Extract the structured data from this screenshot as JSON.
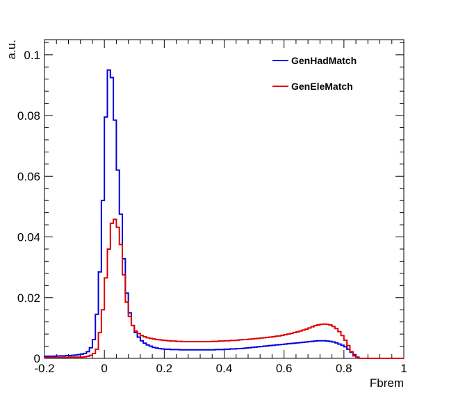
{
  "chart_data": {
    "type": "line",
    "title": "",
    "xlabel": "Fbrem",
    "ylabel": "a.u.",
    "xlim": [
      -0.2,
      1.0
    ],
    "ylim": [
      0,
      0.105
    ],
    "grid": false,
    "legend_position": "top-right",
    "x_ticks": [
      {
        "value": -0.2,
        "label": "-0.2"
      },
      {
        "value": 0,
        "label": "0"
      },
      {
        "value": 0.2,
        "label": "0.2"
      },
      {
        "value": 0.4,
        "label": "0.4"
      },
      {
        "value": 0.6,
        "label": "0.6"
      },
      {
        "value": 0.8,
        "label": "0.8"
      },
      {
        "value": 1.0,
        "label": "1"
      }
    ],
    "y_ticks": [
      {
        "value": 0,
        "label": "0"
      },
      {
        "value": 0.02,
        "label": "0.02"
      },
      {
        "value": 0.04,
        "label": "0.04"
      },
      {
        "value": 0.06,
        "label": "0.06"
      },
      {
        "value": 0.08,
        "label": "0.08"
      },
      {
        "value": 0.1,
        "label": "0.1"
      }
    ],
    "bin_edges_start": -0.2,
    "bin_width": 0.01,
    "series": [
      {
        "name": "GenHadMatch",
        "color": "#0000dd",
        "values": [
          0.0007,
          0.0007,
          0.0007,
          0.0007,
          0.0008,
          0.0008,
          0.0008,
          0.0009,
          0.0009,
          0.001,
          0.0011,
          0.0012,
          0.0014,
          0.0016,
          0.0022,
          0.0035,
          0.0062,
          0.0145,
          0.0285,
          0.052,
          0.0795,
          0.095,
          0.0925,
          0.0785,
          0.062,
          0.0475,
          0.0328,
          0.0215,
          0.015,
          0.0108,
          0.0085,
          0.007,
          0.0058,
          0.005,
          0.0044,
          0.004,
          0.0036,
          0.0034,
          0.0032,
          0.0031,
          0.003,
          0.003,
          0.0029,
          0.0029,
          0.0029,
          0.0028,
          0.0028,
          0.0028,
          0.0028,
          0.0028,
          0.0028,
          0.0028,
          0.0028,
          0.0028,
          0.0028,
          0.0028,
          0.0028,
          0.0029,
          0.0029,
          0.0029,
          0.003,
          0.003,
          0.0031,
          0.0031,
          0.0032,
          0.0032,
          0.0033,
          0.0034,
          0.0035,
          0.0036,
          0.0037,
          0.0038,
          0.0039,
          0.004,
          0.0041,
          0.0042,
          0.0043,
          0.0044,
          0.0045,
          0.0046,
          0.0047,
          0.0048,
          0.0049,
          0.005,
          0.0051,
          0.0052,
          0.0053,
          0.0054,
          0.0055,
          0.0056,
          0.0057,
          0.0058,
          0.0058,
          0.0058,
          0.0057,
          0.0056,
          0.0054,
          0.0051,
          0.0047,
          0.0043,
          0.0038,
          0.003,
          0.002,
          0.0012,
          0.0004,
          0.0,
          0.0,
          0.0,
          0.0,
          0.0,
          0.0,
          0.0,
          0.0,
          0.0,
          0.0,
          0.0,
          0.0,
          0.0,
          0.0,
          0.0
        ]
      },
      {
        "name": "GenEleMatch",
        "color": "#dd0000",
        "values": [
          0.0003,
          0.0003,
          0.0003,
          0.0003,
          0.0003,
          0.0003,
          0.0003,
          0.0003,
          0.0004,
          0.0004,
          0.0004,
          0.0004,
          0.0004,
          0.0005,
          0.0007,
          0.001,
          0.0016,
          0.003,
          0.0085,
          0.016,
          0.0265,
          0.036,
          0.0445,
          0.0458,
          0.0432,
          0.0375,
          0.0275,
          0.0185,
          0.0138,
          0.0108,
          0.009,
          0.0082,
          0.0075,
          0.0071,
          0.0068,
          0.0066,
          0.0064,
          0.0062,
          0.0061,
          0.006,
          0.0059,
          0.0058,
          0.0057,
          0.0057,
          0.0056,
          0.0056,
          0.0055,
          0.0055,
          0.0055,
          0.0055,
          0.0055,
          0.0055,
          0.0055,
          0.0055,
          0.0055,
          0.0055,
          0.0056,
          0.0056,
          0.0057,
          0.0057,
          0.0058,
          0.0058,
          0.0059,
          0.0059,
          0.006,
          0.0061,
          0.0062,
          0.0062,
          0.0063,
          0.0064,
          0.0065,
          0.0066,
          0.0067,
          0.0068,
          0.0069,
          0.007,
          0.0071,
          0.0073,
          0.0074,
          0.0076,
          0.0078,
          0.008,
          0.0082,
          0.0085,
          0.0087,
          0.009,
          0.0093,
          0.0096,
          0.01,
          0.0104,
          0.0108,
          0.011,
          0.0112,
          0.0113,
          0.0112,
          0.011,
          0.0105,
          0.0098,
          0.0088,
          0.0075,
          0.006,
          0.0042,
          0.0022,
          0.0008,
          0.0002,
          0.0,
          0.0,
          0.0,
          0.0,
          0.0,
          0.0,
          0.0,
          0.0,
          0.0,
          0.0,
          0.0,
          0.0,
          0.0,
          0.0,
          0.0
        ]
      }
    ]
  }
}
